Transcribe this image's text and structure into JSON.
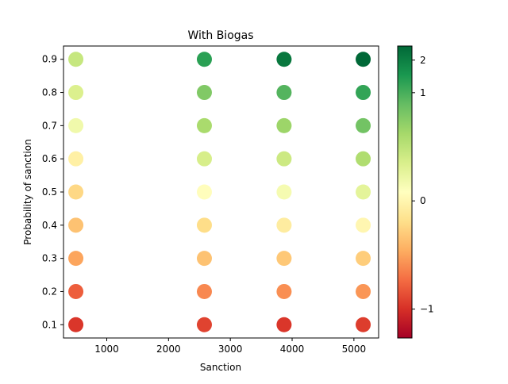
{
  "chart_data": {
    "type": "scatter",
    "title": "With Biogas",
    "xlabel": "Sanction",
    "ylabel": "Probability of sanction",
    "xlim": [
      300,
      5400
    ],
    "ylim": [
      0.06,
      0.94
    ],
    "xticks": [
      1000,
      2000,
      3000,
      4000,
      5000
    ],
    "xtick_labels": [
      "1000",
      "2000",
      "3000",
      "4000",
      "5000"
    ],
    "yticks": [
      0.1,
      0.2,
      0.3,
      0.4,
      0.5,
      0.6,
      0.7,
      0.8,
      0.9
    ],
    "ytick_labels": [
      "0.1",
      "0.2",
      "0.3",
      "0.4",
      "0.5",
      "0.6",
      "0.7",
      "0.8",
      "0.9"
    ],
    "grid": false,
    "colormap": "RdYlGn",
    "colorbar": {
      "vmin": -1.85,
      "vmax": 2.7,
      "ticks": [
        -1,
        0,
        1,
        2
      ],
      "tick_labels": [
        "−1",
        "0",
        "1",
        "2"
      ],
      "ticks_log_symmetric": true
    },
    "points": [
      {
        "x": 500,
        "y": 0.1,
        "c": -1.35
      },
      {
        "x": 500,
        "y": 0.2,
        "c": -1.05
      },
      {
        "x": 500,
        "y": 0.3,
        "c": -0.55
      },
      {
        "x": 500,
        "y": 0.4,
        "c": -0.3
      },
      {
        "x": 500,
        "y": 0.5,
        "c": -0.1
      },
      {
        "x": 500,
        "y": 0.6,
        "c": 0.2
      },
      {
        "x": 500,
        "y": 0.7,
        "c": 0.6
      },
      {
        "x": 500,
        "y": 0.8,
        "c": 0.85
      },
      {
        "x": 500,
        "y": 0.9,
        "c": 1.05
      },
      {
        "x": 2580,
        "y": 0.1,
        "c": -1.25
      },
      {
        "x": 2580,
        "y": 0.2,
        "c": -0.75
      },
      {
        "x": 2580,
        "y": 0.3,
        "c": -0.3
      },
      {
        "x": 2580,
        "y": 0.4,
        "c": -0.05
      },
      {
        "x": 2580,
        "y": 0.5,
        "c": 0.4
      },
      {
        "x": 2580,
        "y": 0.6,
        "c": 0.9
      },
      {
        "x": 2580,
        "y": 0.7,
        "c": 1.3
      },
      {
        "x": 2580,
        "y": 0.8,
        "c": 1.6
      },
      {
        "x": 2580,
        "y": 0.9,
        "c": 2.15
      },
      {
        "x": 3870,
        "y": 0.1,
        "c": -1.35
      },
      {
        "x": 3870,
        "y": 0.2,
        "c": -0.7
      },
      {
        "x": 3870,
        "y": 0.3,
        "c": -0.25
      },
      {
        "x": 3870,
        "y": 0.4,
        "c": 0.15
      },
      {
        "x": 3870,
        "y": 0.5,
        "c": 0.55
      },
      {
        "x": 3870,
        "y": 0.6,
        "c": 1.0
      },
      {
        "x": 3870,
        "y": 0.7,
        "c": 1.4
      },
      {
        "x": 3870,
        "y": 0.8,
        "c": 1.9
      },
      {
        "x": 3870,
        "y": 0.9,
        "c": 2.55
      },
      {
        "x": 5150,
        "y": 0.1,
        "c": -1.3
      },
      {
        "x": 5150,
        "y": 0.2,
        "c": -0.65
      },
      {
        "x": 5150,
        "y": 0.3,
        "c": -0.2
      },
      {
        "x": 5150,
        "y": 0.4,
        "c": 0.3
      },
      {
        "x": 5150,
        "y": 0.5,
        "c": 0.75
      },
      {
        "x": 5150,
        "y": 0.6,
        "c": 1.25
      },
      {
        "x": 5150,
        "y": 0.7,
        "c": 1.7
      },
      {
        "x": 5150,
        "y": 0.8,
        "c": 2.1
      },
      {
        "x": 5150,
        "y": 0.9,
        "c": 2.7
      }
    ]
  }
}
